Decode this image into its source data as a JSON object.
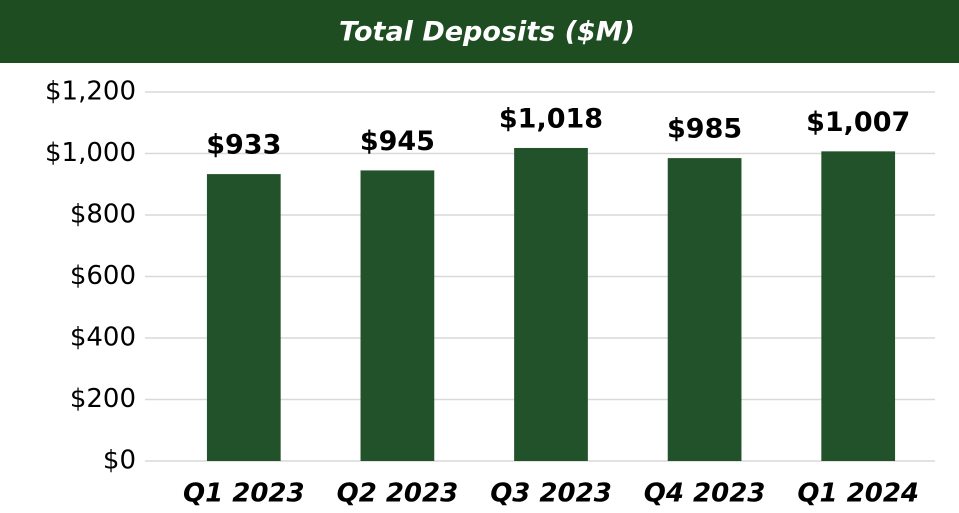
{
  "chart_data": {
    "type": "bar",
    "title": "Total Deposits ($M)",
    "categories": [
      "Q1 2023",
      "Q2 2023",
      "Q3 2023",
      "Q4 2023",
      "Q1 2024"
    ],
    "values": [
      933,
      945,
      1018,
      985,
      1007
    ],
    "value_labels": [
      "$933",
      "$945",
      "$1,018",
      "$985",
      "$1,007"
    ],
    "color": "#22522a",
    "ylim": [
      0,
      1200
    ],
    "yticks": [
      {
        "value": 0,
        "label": "$0"
      },
      {
        "value": 200,
        "label": "$200"
      },
      {
        "value": 400,
        "label": "$400"
      },
      {
        "value": 600,
        "label": "$600"
      },
      {
        "value": 800,
        "label": "$800"
      },
      {
        "value": 1000,
        "label": "$1,000"
      },
      {
        "value": 1200,
        "label": "$1,200"
      }
    ],
    "grid": true
  }
}
